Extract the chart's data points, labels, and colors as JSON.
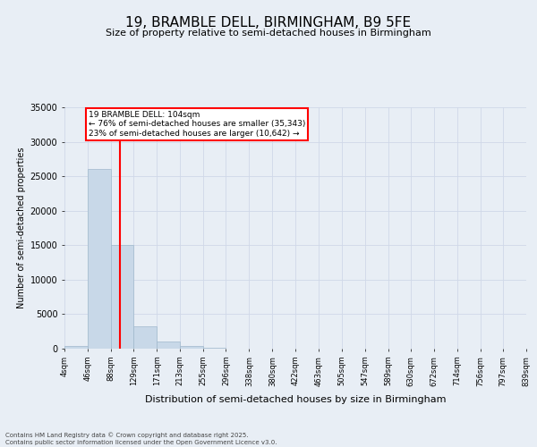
{
  "title": "19, BRAMBLE DELL, BIRMINGHAM, B9 5FE",
  "subtitle": "Size of property relative to semi-detached houses in Birmingham",
  "xlabel": "Distribution of semi-detached houses by size in Birmingham",
  "ylabel": "Number of semi-detached properties",
  "annotation_line1": "19 BRAMBLE DELL: 104sqm",
  "annotation_line2": "← 76% of semi-detached houses are smaller (35,343)",
  "annotation_line3": "23% of semi-detached houses are larger (10,642) →",
  "bin_edges": [
    4,
    46,
    88,
    129,
    171,
    213,
    255,
    296,
    338,
    380,
    422,
    463,
    505,
    547,
    589,
    630,
    672,
    714,
    756,
    797,
    839
  ],
  "bin_labels": [
    "4sqm",
    "46sqm",
    "88sqm",
    "129sqm",
    "171sqm",
    "213sqm",
    "255sqm",
    "296sqm",
    "338sqm",
    "380sqm",
    "422sqm",
    "463sqm",
    "505sqm",
    "547sqm",
    "589sqm",
    "630sqm",
    "672sqm",
    "714sqm",
    "756sqm",
    "797sqm",
    "839sqm"
  ],
  "bar_values": [
    400,
    26100,
    15100,
    3300,
    1050,
    400,
    150,
    0,
    0,
    0,
    0,
    0,
    0,
    0,
    0,
    0,
    0,
    0,
    0,
    0
  ],
  "bar_color": "#c8d8e8",
  "bar_edgecolor": "#a0b8cc",
  "vline_x": 104,
  "vline_color": "red",
  "ylim_max": 35000,
  "yticks": [
    0,
    5000,
    10000,
    15000,
    20000,
    25000,
    30000,
    35000
  ],
  "grid_color": "#d0d8e8",
  "bg_color": "#e8eef5",
  "footer_line1": "Contains HM Land Registry data © Crown copyright and database right 2025.",
  "footer_line2": "Contains public sector information licensed under the Open Government Licence v3.0.",
  "title_fontsize": 11,
  "subtitle_fontsize": 8,
  "ylabel_fontsize": 7,
  "xlabel_fontsize": 8,
  "tick_fontsize": 6,
  "footer_fontsize": 5,
  "ann_fontsize": 6.5
}
